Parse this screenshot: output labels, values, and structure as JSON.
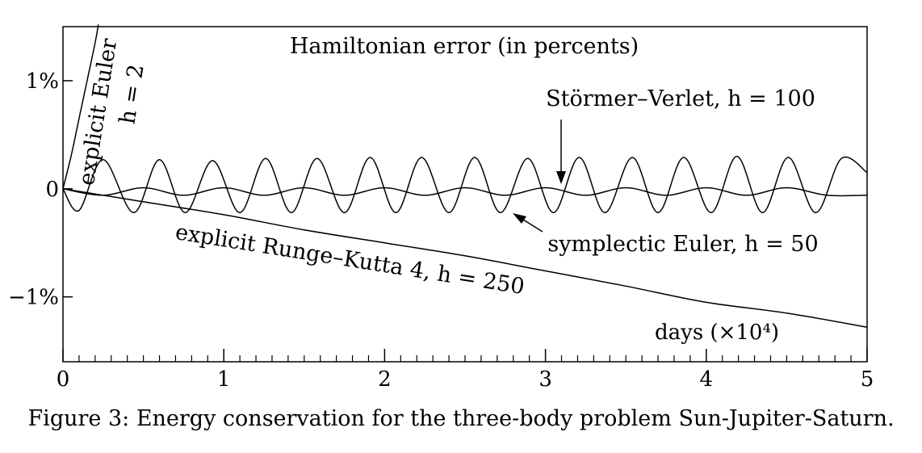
{
  "chart_data": {
    "type": "line",
    "title": "Hamiltonian error (in percents)",
    "xlabel": "days (×10⁴)",
    "ylabel": "",
    "xlim": [
      0,
      5
    ],
    "ylim": [
      -1.6,
      1.5
    ],
    "xticks": [
      0,
      1,
      2,
      3,
      4,
      5
    ],
    "xtick_labels": [
      "0",
      "1",
      "2",
      "3",
      "4",
      "5"
    ],
    "yticks": [
      1,
      0,
      -1
    ],
    "ytick_labels": [
      "1%",
      "0",
      "−1%"
    ],
    "grid": false,
    "legend": "none",
    "series": [
      {
        "name": "explicit Euler, h = 2",
        "x": [
          0,
          0.05,
          0.1,
          0.15,
          0.2,
          0.22
        ],
        "y": [
          0,
          0.3,
          0.65,
          1.0,
          1.35,
          1.52
        ]
      },
      {
        "name": "symplectic Euler, h = 50",
        "x": [
          0,
          0.1,
          0.25,
          0.44,
          0.6,
          0.76,
          0.93,
          1.1,
          1.26,
          1.42,
          1.58,
          1.75,
          1.91,
          2.07,
          2.23,
          2.4,
          2.56,
          2.72,
          2.89,
          3.05,
          3.21,
          3.37,
          3.54,
          3.7,
          3.86,
          4.03,
          4.19,
          4.35,
          4.51,
          4.68,
          4.84,
          5.0
        ],
        "y": [
          0,
          -0.2,
          0.27,
          -0.22,
          0.27,
          -0.22,
          0.26,
          -0.22,
          0.28,
          -0.22,
          0.28,
          -0.22,
          0.29,
          -0.22,
          0.29,
          -0.22,
          0.29,
          -0.22,
          0.28,
          -0.22,
          0.29,
          -0.22,
          0.29,
          -0.22,
          0.29,
          -0.22,
          0.3,
          -0.22,
          0.29,
          -0.22,
          0.28,
          0.15
        ]
      },
      {
        "name": "Störmer–Verlet, h = 100",
        "x": [
          0,
          0.25,
          0.5,
          0.75,
          1.0,
          1.25,
          1.5,
          1.75,
          2.0,
          2.25,
          2.5,
          2.75,
          3.0,
          3.25,
          3.5,
          3.75,
          4.0,
          4.25,
          4.5,
          4.75,
          5.0
        ],
        "y": [
          0,
          -0.06,
          0.01,
          -0.06,
          0.01,
          -0.06,
          0.01,
          -0.06,
          0.01,
          -0.06,
          0.01,
          -0.06,
          0.01,
          -0.06,
          0.01,
          -0.06,
          0.01,
          -0.06,
          0.01,
          -0.06,
          -0.06
        ]
      },
      {
        "name": "explicit Runge–Kutta 4, h = 250",
        "x": [
          0,
          0.5,
          1.0,
          1.5,
          2.0,
          2.5,
          3.0,
          3.5,
          4.0,
          4.5,
          5.0
        ],
        "y": [
          0,
          -0.12,
          -0.24,
          -0.38,
          -0.5,
          -0.62,
          -0.76,
          -0.9,
          -1.05,
          -1.15,
          -1.28
        ]
      }
    ],
    "annotations": {
      "euler_label_1": "explicit Euler",
      "euler_label_2": "h = 2",
      "sv_label": "Störmer–Verlet, h = 100",
      "se_label": "symplectic Euler, h = 50",
      "rk_label": "explicit Runge–Kutta 4, h = 250"
    }
  },
  "caption": "Figure 3: Energy conservation for the three-body problem Sun-Jupiter-Saturn."
}
